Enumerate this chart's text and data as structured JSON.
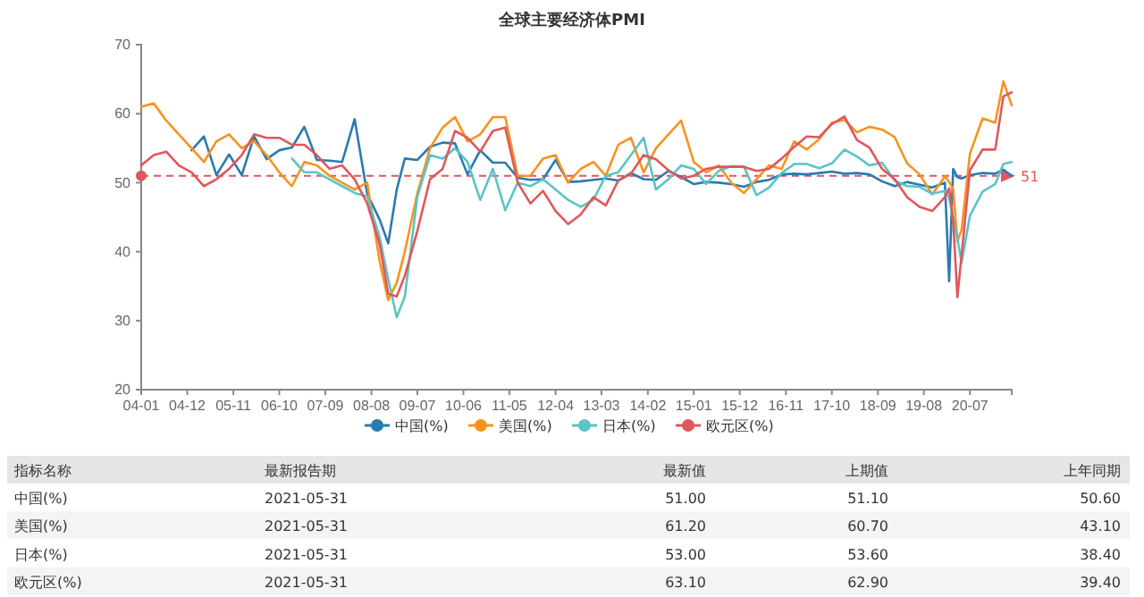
{
  "chart_data": {
    "type": "line",
    "title": "全球主要经济体PMI",
    "x": [
      "2004-01",
      "2004-04",
      "2004-07",
      "2004-10",
      "2005-01",
      "2005-04",
      "2005-07",
      "2005-10",
      "2006-01",
      "2006-04",
      "2006-07",
      "2006-10",
      "2007-01",
      "2007-04",
      "2007-07",
      "2007-10",
      "2008-01",
      "2008-04",
      "2008-07",
      "2008-10",
      "2008-12",
      "2009-02",
      "2009-04",
      "2009-07",
      "2009-10",
      "2010-01",
      "2010-04",
      "2010-07",
      "2010-10",
      "2011-01",
      "2011-04",
      "2011-07",
      "2011-10",
      "2012-01",
      "2012-04",
      "2012-07",
      "2012-10",
      "2013-01",
      "2013-04",
      "2013-07",
      "2013-10",
      "2014-01",
      "2014-04",
      "2014-07",
      "2014-10",
      "2015-01",
      "2015-04",
      "2015-07",
      "2015-10",
      "2016-01",
      "2016-04",
      "2016-07",
      "2016-10",
      "2017-01",
      "2017-04",
      "2017-07",
      "2017-10",
      "2018-01",
      "2018-04",
      "2018-07",
      "2018-10",
      "2019-01",
      "2019-04",
      "2019-07",
      "2019-10",
      "2020-01",
      "2020-02",
      "2020-03",
      "2020-04",
      "2020-05",
      "2020-07",
      "2020-10",
      "2021-01",
      "2021-03",
      "2021-05"
    ],
    "series": [
      {
        "name": "中国(%)",
        "color": "#2a7ab0",
        "values": [
          null,
          null,
          null,
          null,
          54.7,
          56.7,
          51.1,
          54.1,
          51.1,
          56.7,
          53.4,
          54.7,
          55.1,
          58.1,
          53.3,
          53.2,
          53.0,
          59.2,
          48.4,
          44.6,
          41.2,
          49.0,
          53.5,
          53.3,
          55.2,
          55.8,
          55.7,
          51.2,
          54.7,
          52.9,
          52.9,
          50.7,
          50.4,
          50.5,
          53.3,
          50.1,
          50.2,
          50.4,
          50.6,
          50.3,
          51.4,
          50.5,
          50.4,
          51.7,
          50.8,
          49.8,
          50.1,
          50.0,
          49.8,
          49.4,
          50.1,
          50.4,
          51.2,
          51.3,
          51.2,
          51.4,
          51.6,
          51.3,
          51.4,
          51.2,
          50.2,
          49.5,
          50.1,
          49.7,
          49.3,
          50.0,
          35.7,
          52.0,
          50.8,
          50.6,
          51.1,
          51.4,
          51.3,
          51.9,
          51.0
        ]
      },
      {
        "name": "美国(%)",
        "color": "#f7931e",
        "values": [
          61,
          61.5,
          59,
          57,
          55,
          53,
          56,
          57,
          55,
          56,
          54,
          51.5,
          49.5,
          53,
          52.5,
          51,
          50,
          49,
          50,
          38.5,
          33,
          35.5,
          40,
          48.5,
          55,
          58,
          59.5,
          56,
          57,
          59.5,
          59.5,
          51,
          51,
          53.5,
          54,
          50,
          52,
          53,
          51,
          55.5,
          56.5,
          51.5,
          55,
          57,
          59,
          53,
          51.5,
          52.5,
          50,
          48.5,
          50.5,
          52.5,
          52,
          56,
          54.8,
          56.3,
          58.7,
          59.1,
          57.3,
          58.1,
          57.7,
          56.6,
          52.8,
          51.2,
          48.3,
          50.9,
          50.1,
          49.1,
          41.5,
          43.1,
          54.2,
          59.3,
          58.7,
          64.7,
          61.2
        ]
      },
      {
        "name": "日本(%)",
        "color": "#5bc4c4",
        "values": [
          null,
          null,
          null,
          null,
          null,
          null,
          null,
          null,
          null,
          null,
          null,
          null,
          53.5,
          51.5,
          51.5,
          50.5,
          49.5,
          48.5,
          48,
          42,
          36,
          30.5,
          33.5,
          48,
          54,
          53.5,
          55,
          53,
          47.5,
          52,
          46,
          50,
          49.5,
          50.5,
          49,
          47.5,
          46.5,
          47.5,
          51,
          51.5,
          54,
          56.5,
          49,
          50.5,
          52.5,
          52,
          49.8,
          51.7,
          52.4,
          52.3,
          48.2,
          49.3,
          51.4,
          52.7,
          52.7,
          52.1,
          52.8,
          54.8,
          53.8,
          52.5,
          52.9,
          50.3,
          49.5,
          49.4,
          48.4,
          48.8,
          47.8,
          44.8,
          41.9,
          38.4,
          45.2,
          48.7,
          49.8,
          52.7,
          53.0
        ]
      },
      {
        "name": "欧元区(%)",
        "color": "#e0575b",
        "values": [
          52.5,
          54,
          54.5,
          52.5,
          51.5,
          49.5,
          50.5,
          52,
          54,
          57,
          56.5,
          56.5,
          55.5,
          55.5,
          54,
          52,
          52.5,
          50.5,
          47,
          41,
          33.9,
          33.5,
          36.5,
          43,
          50.5,
          52,
          57.5,
          56.5,
          54.5,
          57.5,
          58,
          50,
          47,
          48.8,
          45.9,
          44,
          45.4,
          47.9,
          46.7,
          50.3,
          51.3,
          54,
          53.4,
          51.8,
          50.6,
          51,
          52,
          52.3,
          52.3,
          52.3,
          51.7,
          52,
          53.5,
          55.2,
          56.7,
          56.6,
          58.5,
          59.6,
          56.2,
          55.1,
          52,
          50.5,
          47.9,
          46.5,
          45.9,
          47.9,
          49.2,
          44.5,
          33.4,
          39.4,
          51.8,
          54.8,
          54.8,
          62.5,
          63.1
        ]
      }
    ],
    "xlim": [
      "2004-01",
      "2021-05"
    ],
    "xticks": [
      {
        "value": "2004-01",
        "label": "04-01"
      },
      {
        "value": "2004-12",
        "label": "04-12"
      },
      {
        "value": "2005-11",
        "label": "05-11"
      },
      {
        "value": "2006-10",
        "label": "06-10"
      },
      {
        "value": "2007-09",
        "label": "07-09"
      },
      {
        "value": "2008-08",
        "label": "08-08"
      },
      {
        "value": "2009-07",
        "label": "09-07"
      },
      {
        "value": "2010-06",
        "label": "10-06"
      },
      {
        "value": "2011-05",
        "label": "11-05"
      },
      {
        "value": "2012-04",
        "label": "12-04"
      },
      {
        "value": "2013-03",
        "label": "13-03"
      },
      {
        "value": "2014-02",
        "label": "14-02"
      },
      {
        "value": "2015-01",
        "label": "15-01"
      },
      {
        "value": "2015-12",
        "label": "15-12"
      },
      {
        "value": "2016-11",
        "label": "16-11"
      },
      {
        "value": "2017-10",
        "label": "17-10"
      },
      {
        "value": "2018-09",
        "label": "18-09"
      },
      {
        "value": "2019-08",
        "label": "19-08"
      },
      {
        "value": "2020-07",
        "label": "20-07"
      }
    ],
    "ylim": [
      20,
      70
    ],
    "yticks": [
      20,
      30,
      40,
      50,
      60,
      70
    ],
    "ref_lines": [
      {
        "axis": "y",
        "value": 51,
        "label": "51",
        "color": "#e0575b",
        "line_style": "dashed"
      }
    ],
    "legend": "bottom",
    "annotations": [
      "指标名称",
      "最新报告期",
      "最新值",
      "上期值",
      "上年同期",
      "中国(%)",
      "2021-05-31",
      "51.00",
      "51.10",
      "50.60",
      "美国(%)",
      "2021-05-31",
      "61.20",
      "60.70",
      "43.10",
      "日本(%)",
      "2021-05-31",
      "53.00",
      "53.60",
      "38.40",
      "欧元区(%)",
      "2021-05-31",
      "63.10",
      "62.90",
      "39.40"
    ]
  }
}
